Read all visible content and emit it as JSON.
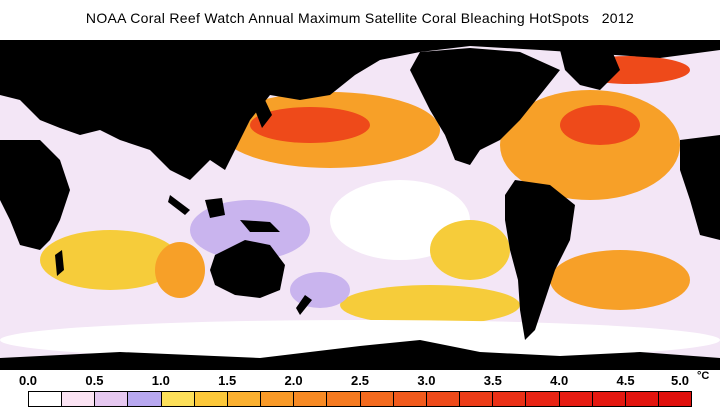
{
  "title": "NOAA Coral Reef Watch Annual Maximum Satellite Coral Bleaching HotSpots   2012",
  "colorbar": {
    "tick_labels": [
      "0.0",
      "0.5",
      "1.0",
      "1.5",
      "2.0",
      "2.5",
      "3.0",
      "3.5",
      "4.0",
      "4.5",
      "5.0"
    ],
    "unit": "°C",
    "colors": [
      "#ffffff",
      "#fbe3f3",
      "#e6c8f0",
      "#b8a8f0",
      "#fde05a",
      "#fcc83a",
      "#fbb030",
      "#f99a28",
      "#f78a24",
      "#f57a20",
      "#f36a1e",
      "#f15a1c",
      "#ee4a1a",
      "#ec3c18",
      "#ea3016",
      "#e82414",
      "#e61c12",
      "#e41810",
      "#e2140e",
      "#e0100c"
    ]
  },
  "map_colors": {
    "land": "#000000",
    "ocean_base": "#f3e6f6",
    "white": "#ffffff",
    "lavender": "#c9b4ee",
    "yellow": "#f6cc3a",
    "orange": "#f7a028",
    "red": "#ee4a1a"
  }
}
